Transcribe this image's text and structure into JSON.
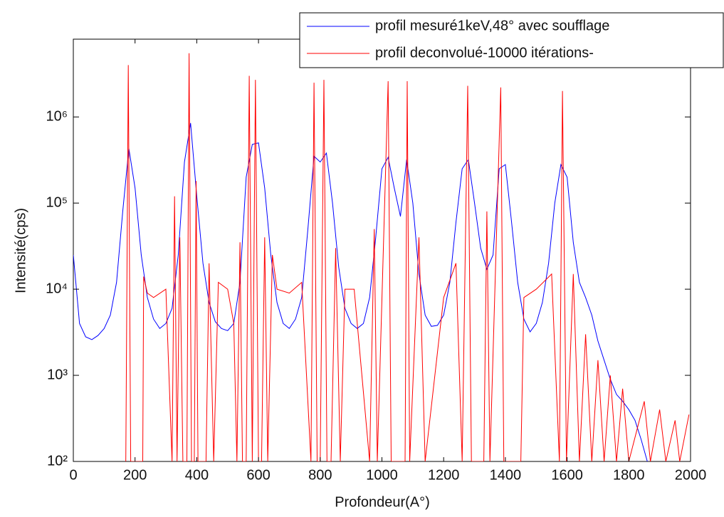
{
  "chart_data": {
    "type": "line",
    "yscale": "log",
    "grid": false,
    "legend": "upper right",
    "xlabel": "Profondeur(A°)",
    "ylabel": "Intensité(cps)",
    "xlim": [
      0,
      2000
    ],
    "xticks": [
      0,
      200,
      400,
      600,
      800,
      1000,
      1200,
      1400,
      1600,
      1800,
      2000
    ],
    "ylim": [
      100,
      8000000
    ],
    "yticks": [
      {
        "value": 100,
        "label": "10²"
      },
      {
        "value": 1000,
        "label": "10³"
      },
      {
        "value": 10000,
        "label": "10⁴"
      },
      {
        "value": 100000,
        "label": "10⁵"
      },
      {
        "value": 1000000,
        "label": "10⁶"
      }
    ],
    "series": [
      {
        "name": "profil mesuré1keV,48° avec soufflage",
        "color": "#0000ff",
        "x": [
          0,
          20,
          40,
          60,
          80,
          100,
          120,
          140,
          160,
          180,
          200,
          220,
          240,
          260,
          280,
          300,
          320,
          340,
          360,
          380,
          400,
          420,
          440,
          460,
          480,
          500,
          520,
          540,
          560,
          580,
          600,
          620,
          640,
          660,
          680,
          700,
          720,
          740,
          760,
          780,
          800,
          820,
          840,
          860,
          880,
          900,
          920,
          940,
          960,
          980,
          1000,
          1020,
          1040,
          1060,
          1080,
          1100,
          1120,
          1140,
          1160,
          1180,
          1200,
          1220,
          1240,
          1260,
          1280,
          1300,
          1320,
          1340,
          1360,
          1380,
          1400,
          1420,
          1440,
          1460,
          1480,
          1500,
          1520,
          1540,
          1560,
          1580,
          1600,
          1620,
          1640,
          1660,
          1680,
          1700,
          1720,
          1740,
          1760,
          1780,
          1800,
          1820,
          1840,
          1860
        ],
        "values": [
          25000,
          4000,
          2800,
          2600,
          2900,
          3500,
          5000,
          12000,
          80000,
          430000,
          150000,
          25000,
          8000,
          4500,
          3500,
          4000,
          6000,
          25000,
          300000,
          850000,
          120000,
          20000,
          7000,
          4200,
          3500,
          3300,
          4000,
          12000,
          200000,
          480000,
          500000,
          150000,
          25000,
          7000,
          4000,
          3500,
          4500,
          8000,
          50000,
          350000,
          300000,
          380000,
          100000,
          18000,
          6000,
          4000,
          3500,
          4000,
          8000,
          40000,
          250000,
          340000,
          150000,
          70000,
          320000,
          100000,
          15000,
          5000,
          3700,
          3800,
          5000,
          12000,
          60000,
          250000,
          320000,
          100000,
          30000,
          17000,
          25000,
          250000,
          280000,
          60000,
          12000,
          4500,
          3200,
          4000,
          7000,
          20000,
          100000,
          280000,
          200000,
          35000,
          12000,
          8000,
          5000,
          2500,
          1500,
          900,
          600,
          500,
          400,
          300,
          180,
          100
        ]
      },
      {
        "name": "profil deconvolué-10000 itérations-",
        "color": "#ff0000",
        "x": [
          170,
          178,
          186,
          225,
          228,
          240,
          260,
          300,
          320,
          328,
          336,
          345,
          355,
          368,
          375,
          383,
          392,
          398,
          404,
          430,
          440,
          455,
          470,
          500,
          520,
          530,
          540,
          548,
          560,
          570,
          580,
          590,
          600,
          610,
          620,
          630,
          645,
          660,
          700,
          740,
          770,
          780,
          790,
          800,
          812,
          822,
          835,
          850,
          865,
          880,
          910,
          960,
          975,
          985,
          1020,
          1030,
          1075,
          1082,
          1090,
          1120,
          1140,
          1200,
          1240,
          1260,
          1278,
          1290,
          1330,
          1340,
          1350,
          1385,
          1395,
          1450,
          1460,
          1500,
          1550,
          1575,
          1585,
          1598,
          1620,
          1640,
          1660,
          1680,
          1700,
          1720,
          1740,
          1760,
          1780,
          1800,
          1850,
          1870,
          1900,
          1920,
          1950,
          1965,
          1995
        ],
        "values": [
          100,
          4000000,
          100,
          100,
          14000,
          9000,
          8000,
          10000,
          100,
          120000,
          100,
          40000,
          100,
          100,
          5500000,
          100,
          100,
          180000,
          100,
          100,
          20000,
          100,
          12000,
          10000,
          4000,
          100,
          35000,
          100,
          100,
          3000000,
          100,
          2700000,
          100,
          100,
          40000,
          100,
          25000,
          10000,
          9000,
          12000,
          100,
          2500000,
          100,
          100,
          2700000,
          100,
          100,
          30000,
          100,
          10000,
          10000,
          100,
          50000,
          100,
          2600000,
          100,
          100,
          2600000,
          100,
          40000,
          100,
          8000,
          20000,
          100,
          2300000,
          100,
          100,
          80000,
          100,
          2200000,
          100,
          100,
          8000,
          10000,
          15000,
          100,
          2000000,
          100,
          15000,
          100,
          3000,
          100,
          1500,
          100,
          1000,
          100,
          700,
          100,
          500,
          100,
          400,
          100,
          300,
          100,
          350
        ]
      }
    ]
  }
}
